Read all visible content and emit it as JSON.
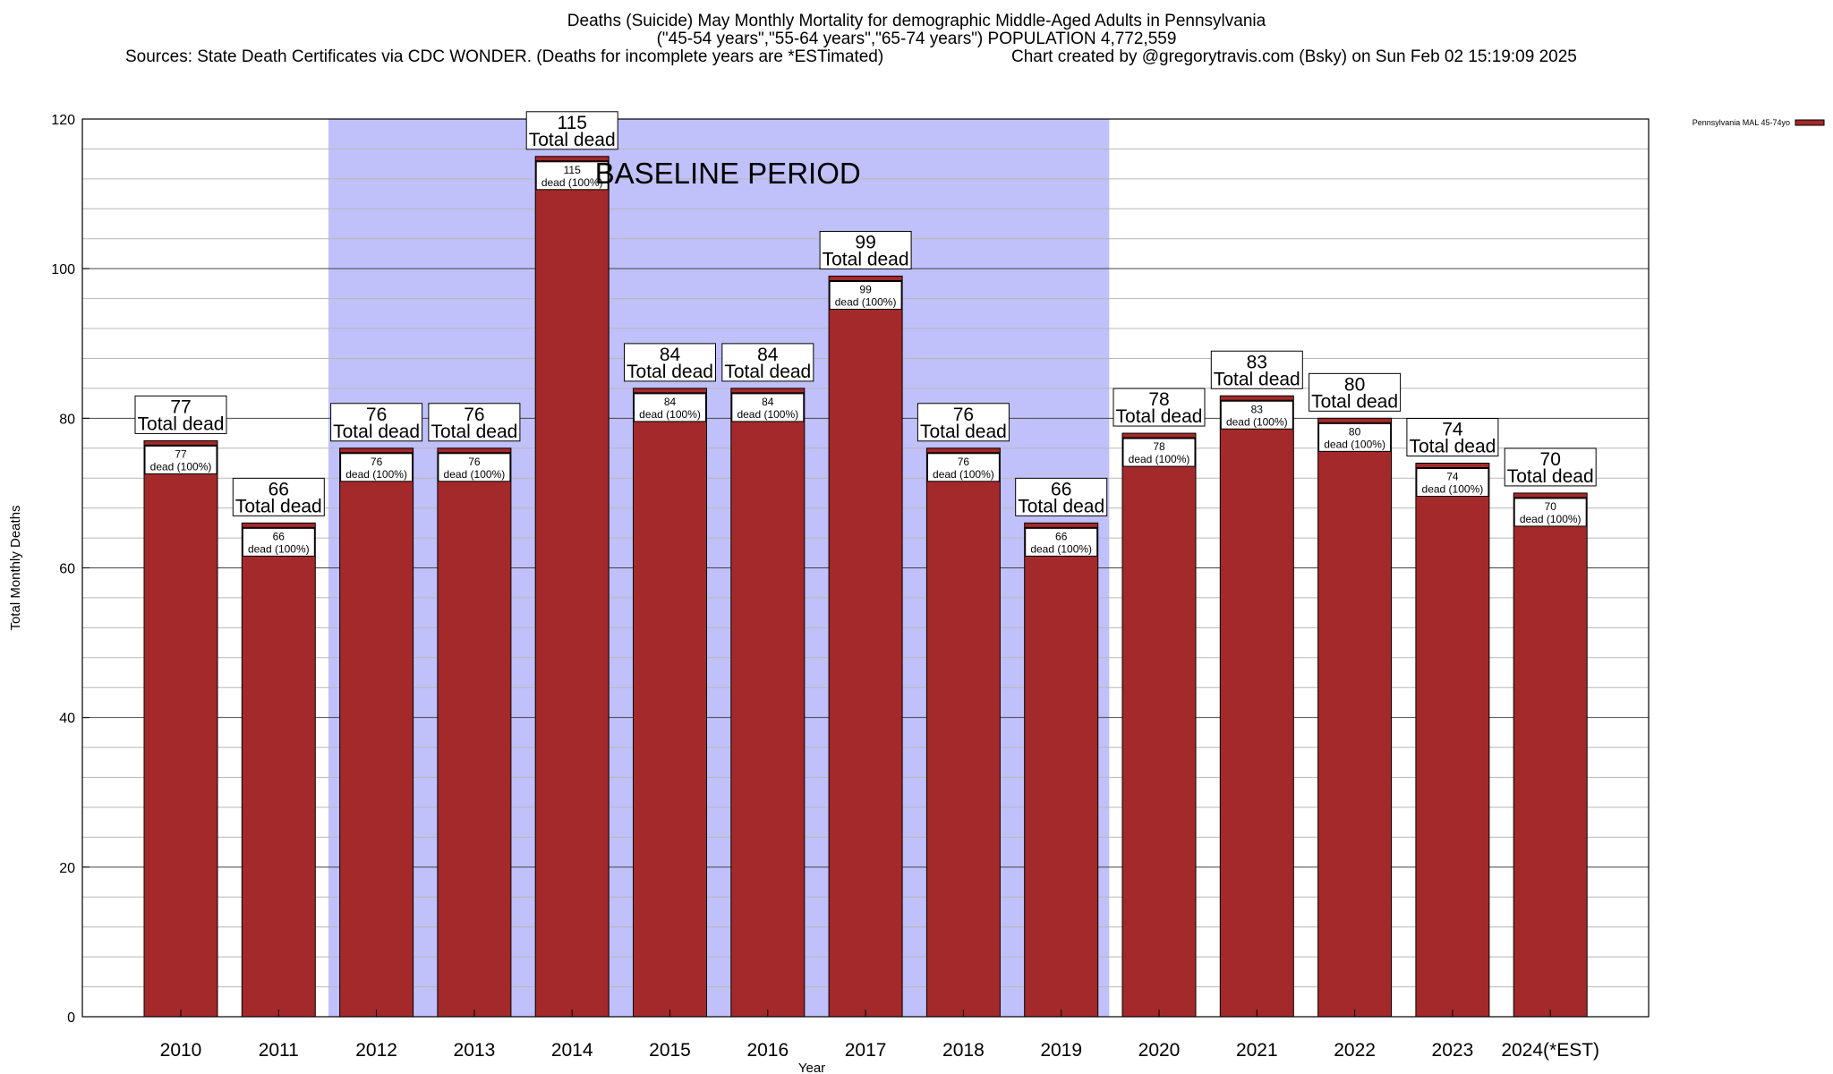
{
  "header": {
    "title_line1": "Deaths (Suicide) May Monthly Mortality for demographic Middle-Aged Adults in Pennsylvania",
    "title_line2": "(\"45-54 years\",\"55-64 years\",\"65-74 years\") POPULATION 4,772,559",
    "sources": "Sources: State Death Certificates via CDC WONDER. (Deaths for incomplete years are *ESTimated)",
    "credit": "Chart created by @gregorytravis.com (Bsky) on Sun Feb 02 15:19:09 2025"
  },
  "chart_data": {
    "type": "bar",
    "xlabel": "Year",
    "ylabel": "Total Monthly Deaths",
    "ylim": [
      0,
      120
    ],
    "yticks": [
      0,
      20,
      40,
      60,
      80,
      100,
      120
    ],
    "grid": true,
    "legend_position": "top-right",
    "categories": [
      "2010",
      "2011",
      "2012",
      "2013",
      "2014",
      "2015",
      "2016",
      "2017",
      "2018",
      "2019",
      "2020",
      "2021",
      "2022",
      "2023",
      "2024(*EST)"
    ],
    "series": [
      {
        "name": "Pennsylvania MAL 45-74yo",
        "color": "#a4292a",
        "values": [
          77,
          66,
          76,
          76,
          115,
          84,
          84,
          99,
          76,
          66,
          78,
          83,
          80,
          74,
          70
        ]
      }
    ],
    "top_label_text": "Total dead",
    "inner_label_text": "dead (100%)",
    "baseline_region": {
      "label": "BASELINE PERIOD",
      "from": "2012",
      "to": "2019",
      "color": "#c0c0fb"
    }
  }
}
